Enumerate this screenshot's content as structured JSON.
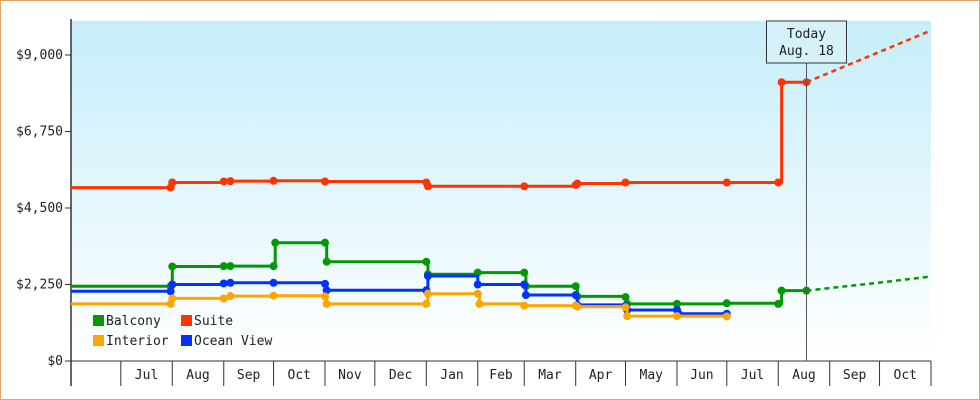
{
  "chart_data": {
    "type": "line",
    "step": true,
    "ylim": [
      0,
      10000
    ],
    "yticks": [
      {
        "value": 0,
        "label": "$0"
      },
      {
        "value": 2250,
        "label": "$2,250"
      },
      {
        "value": 4500,
        "label": "$4,500"
      },
      {
        "value": 6750,
        "label": "$6,750"
      },
      {
        "value": 9000,
        "label": "$9,000"
      }
    ],
    "xlim": [
      "2014-06-01",
      "2015-10-31"
    ],
    "months": [
      {
        "label": "Jul",
        "start": "2014-07-01",
        "end": "2014-07-31"
      },
      {
        "label": "Aug",
        "start": "2014-08-01",
        "end": "2014-08-31"
      },
      {
        "label": "Sep",
        "start": "2014-09-01",
        "end": "2014-09-30"
      },
      {
        "label": "Oct",
        "start": "2014-10-01",
        "end": "2014-10-31"
      },
      {
        "label": "Nov",
        "start": "2014-11-01",
        "end": "2014-11-30"
      },
      {
        "label": "Dec",
        "start": "2014-12-01",
        "end": "2014-12-31"
      },
      {
        "label": "Jan",
        "start": "2015-01-01",
        "end": "2015-01-31"
      },
      {
        "label": "Feb",
        "start": "2015-02-01",
        "end": "2015-02-28"
      },
      {
        "label": "Mar",
        "start": "2015-03-01",
        "end": "2015-03-31"
      },
      {
        "label": "Apr",
        "start": "2015-04-01",
        "end": "2015-04-30"
      },
      {
        "label": "May",
        "start": "2015-05-01",
        "end": "2015-05-31"
      },
      {
        "label": "Jun",
        "start": "2015-06-01",
        "end": "2015-06-30"
      },
      {
        "label": "Jul",
        "start": "2015-07-01",
        "end": "2015-07-31"
      },
      {
        "label": "Aug",
        "start": "2015-08-01",
        "end": "2015-08-31"
      },
      {
        "label": "Sep",
        "start": "2015-09-01",
        "end": "2015-09-30"
      },
      {
        "label": "Oct",
        "start": "2015-10-01",
        "end": "2015-10-31"
      }
    ],
    "today": {
      "date": "2015-08-18",
      "line1": "Today",
      "line2": "Aug. 18"
    },
    "series": [
      {
        "name": "Suite",
        "color": "#ff3300",
        "points": [
          {
            "x": "2014-06-01",
            "y": 5100
          },
          {
            "x": "2014-07-31",
            "y": 5100
          },
          {
            "x": "2014-08-01",
            "y": 5250
          },
          {
            "x": "2014-09-01",
            "y": 5280
          },
          {
            "x": "2014-09-05",
            "y": 5290
          },
          {
            "x": "2014-10-01",
            "y": 5300
          },
          {
            "x": "2014-11-01",
            "y": 5280
          },
          {
            "x": "2015-01-01",
            "y": 5250
          },
          {
            "x": "2015-01-02",
            "y": 5140
          },
          {
            "x": "2015-03-01",
            "y": 5140
          },
          {
            "x": "2015-04-01",
            "y": 5180
          },
          {
            "x": "2015-04-02",
            "y": 5220
          },
          {
            "x": "2015-05-01",
            "y": 5250
          },
          {
            "x": "2015-07-01",
            "y": 5250
          },
          {
            "x": "2015-08-01",
            "y": 5250
          },
          {
            "x": "2015-08-03",
            "y": 8200
          },
          {
            "x": "2015-08-18",
            "y": 8200
          }
        ],
        "projection": [
          {
            "x": "2015-08-18",
            "y": 8200
          },
          {
            "x": "2015-10-31",
            "y": 9700
          }
        ]
      },
      {
        "name": "Balcony",
        "color": "#009900",
        "points": [
          {
            "x": "2014-06-01",
            "y": 2200
          },
          {
            "x": "2014-07-31",
            "y": 2200
          },
          {
            "x": "2014-08-01",
            "y": 2780
          },
          {
            "x": "2014-09-01",
            "y": 2790
          },
          {
            "x": "2014-09-05",
            "y": 2790
          },
          {
            "x": "2014-10-01",
            "y": 2790
          },
          {
            "x": "2014-10-02",
            "y": 3480
          },
          {
            "x": "2014-11-01",
            "y": 3480
          },
          {
            "x": "2014-11-02",
            "y": 2920
          },
          {
            "x": "2015-01-01",
            "y": 2920
          },
          {
            "x": "2015-01-02",
            "y": 2550
          },
          {
            "x": "2015-02-01",
            "y": 2600
          },
          {
            "x": "2015-03-01",
            "y": 2600
          },
          {
            "x": "2015-03-02",
            "y": 2200
          },
          {
            "x": "2015-04-01",
            "y": 2200
          },
          {
            "x": "2015-04-02",
            "y": 1900
          },
          {
            "x": "2015-05-01",
            "y": 1880
          },
          {
            "x": "2015-05-02",
            "y": 1680
          },
          {
            "x": "2015-06-01",
            "y": 1680
          },
          {
            "x": "2015-07-01",
            "y": 1700
          },
          {
            "x": "2015-08-01",
            "y": 1680
          },
          {
            "x": "2015-08-03",
            "y": 2070
          },
          {
            "x": "2015-08-18",
            "y": 2070
          }
        ],
        "projection": [
          {
            "x": "2015-08-18",
            "y": 2070
          },
          {
            "x": "2015-09-30",
            "y": 2300
          },
          {
            "x": "2015-10-31",
            "y": 2480
          }
        ]
      },
      {
        "name": "Ocean View",
        "color": "#0033ff",
        "points": [
          {
            "x": "2014-06-01",
            "y": 2050
          },
          {
            "x": "2014-07-31",
            "y": 2050
          },
          {
            "x": "2014-08-01",
            "y": 2250
          },
          {
            "x": "2014-09-01",
            "y": 2280
          },
          {
            "x": "2014-09-05",
            "y": 2300
          },
          {
            "x": "2014-10-01",
            "y": 2300
          },
          {
            "x": "2014-11-01",
            "y": 2270
          },
          {
            "x": "2014-11-02",
            "y": 2080
          },
          {
            "x": "2015-01-01",
            "y": 2080
          },
          {
            "x": "2015-01-02",
            "y": 2500
          },
          {
            "x": "2015-02-01",
            "y": 2250
          },
          {
            "x": "2015-03-01",
            "y": 2250
          },
          {
            "x": "2015-03-02",
            "y": 1940
          },
          {
            "x": "2015-04-01",
            "y": 1940
          },
          {
            "x": "2015-04-02",
            "y": 1650
          },
          {
            "x": "2015-05-01",
            "y": 1620
          },
          {
            "x": "2015-05-02",
            "y": 1500
          },
          {
            "x": "2015-06-01",
            "y": 1500
          },
          {
            "x": "2015-06-02",
            "y": 1390
          },
          {
            "x": "2015-07-01",
            "y": 1390
          }
        ]
      },
      {
        "name": "Interior",
        "color": "#ffa500",
        "points": [
          {
            "x": "2014-06-01",
            "y": 1680
          },
          {
            "x": "2014-07-31",
            "y": 1680
          },
          {
            "x": "2014-08-01",
            "y": 1840
          },
          {
            "x": "2014-09-01",
            "y": 1840
          },
          {
            "x": "2014-09-05",
            "y": 1910
          },
          {
            "x": "2014-10-01",
            "y": 1920
          },
          {
            "x": "2014-11-01",
            "y": 1900
          },
          {
            "x": "2014-11-02",
            "y": 1680
          },
          {
            "x": "2015-01-01",
            "y": 1680
          },
          {
            "x": "2015-01-02",
            "y": 1980
          },
          {
            "x": "2015-02-01",
            "y": 1980
          },
          {
            "x": "2015-02-02",
            "y": 1680
          },
          {
            "x": "2015-03-01",
            "y": 1630
          },
          {
            "x": "2015-04-01",
            "y": 1630
          },
          {
            "x": "2015-04-02",
            "y": 1600
          },
          {
            "x": "2015-05-01",
            "y": 1580
          },
          {
            "x": "2015-05-02",
            "y": 1320
          },
          {
            "x": "2015-06-01",
            "y": 1320
          },
          {
            "x": "2015-07-01",
            "y": 1310
          }
        ]
      }
    ],
    "legend": [
      {
        "name": "Balcony",
        "color": "#009900"
      },
      {
        "name": "Suite",
        "color": "#ff3300"
      },
      {
        "name": "Interior",
        "color": "#ffa500"
      },
      {
        "name": "Ocean View",
        "color": "#0033ff"
      }
    ]
  }
}
